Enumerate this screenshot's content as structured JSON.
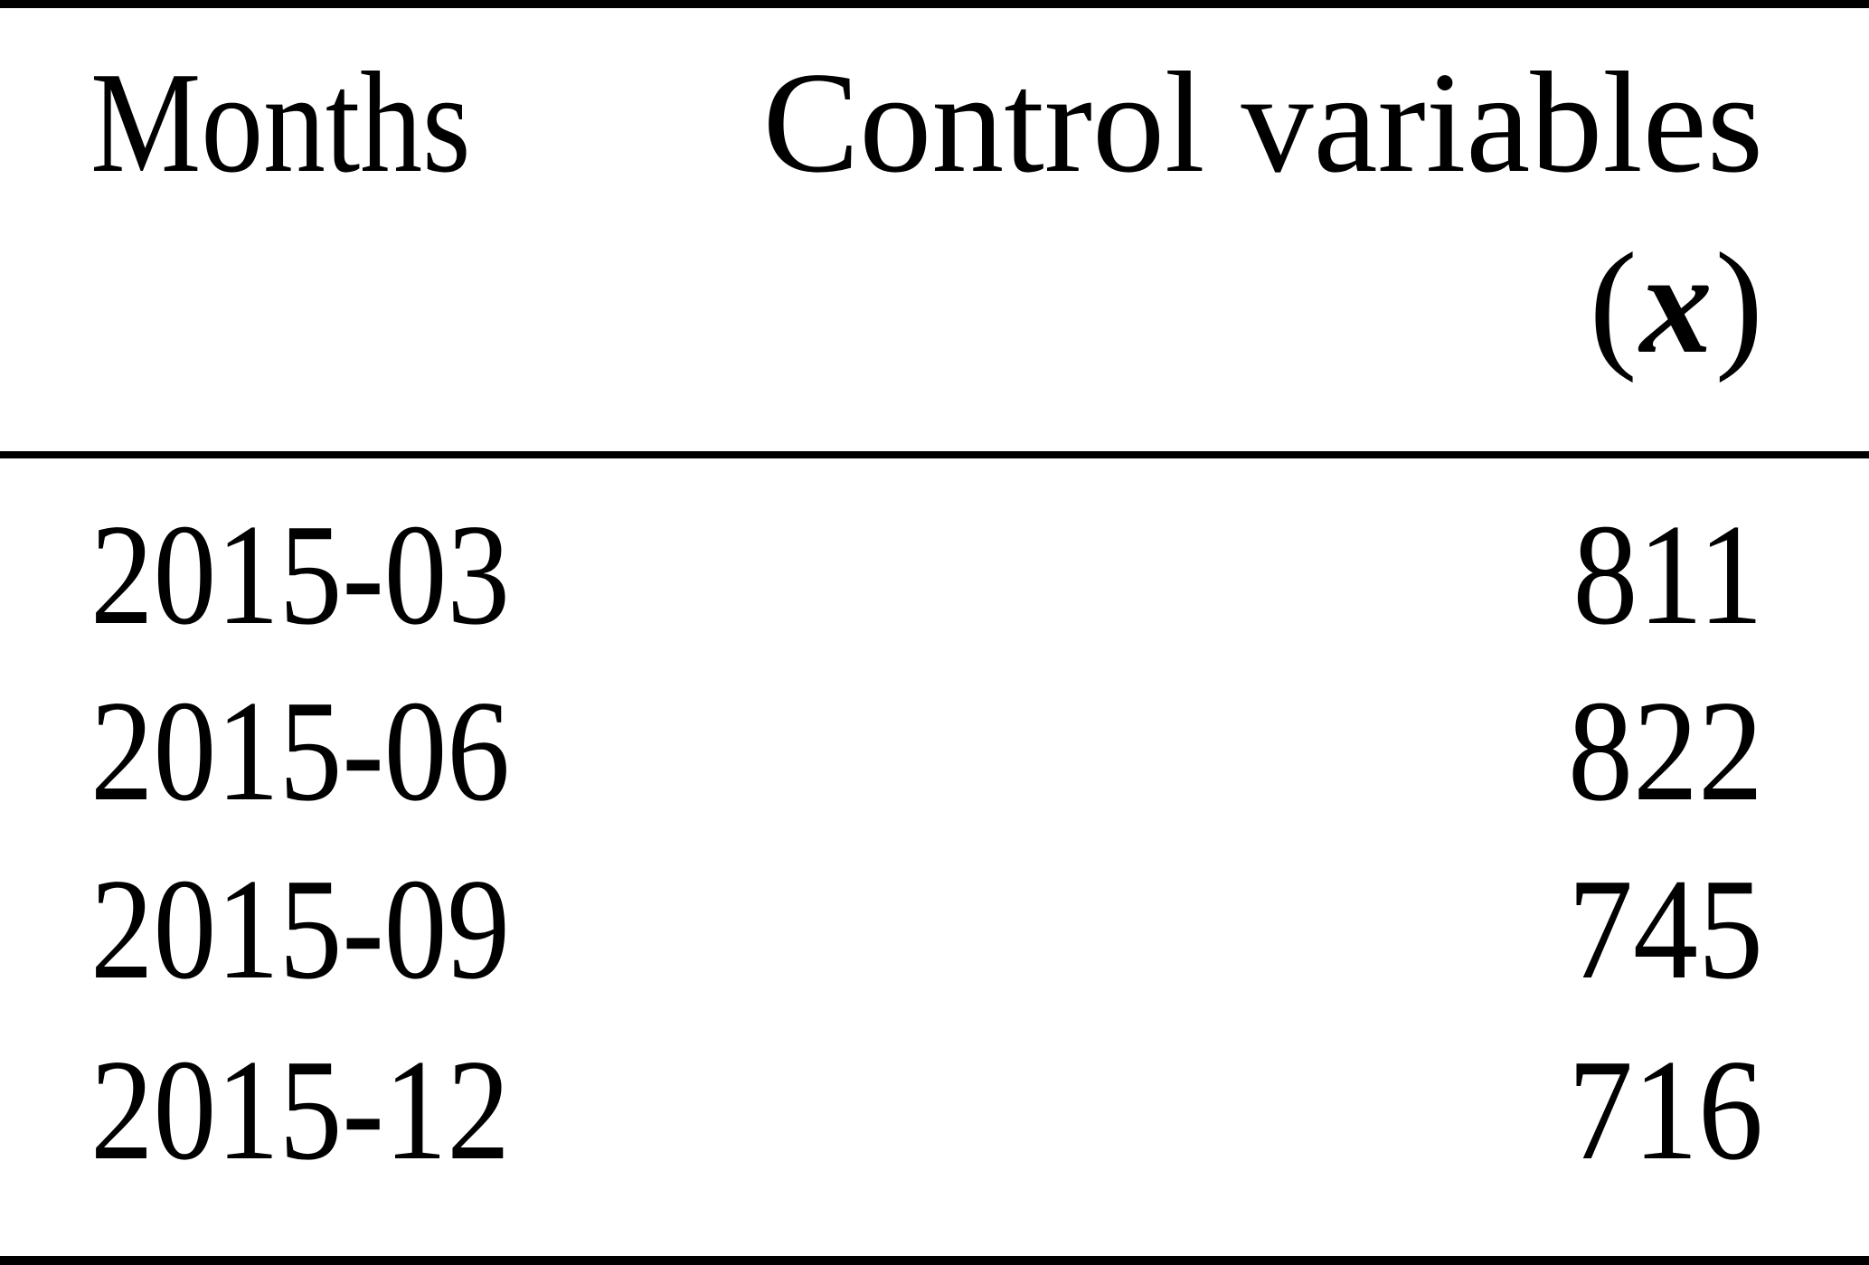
{
  "page": {
    "background_color": "#ffffff",
    "text_color": "#000000",
    "rule_color": "#000000"
  },
  "table": {
    "header": {
      "months": "Months",
      "control_line1": "Control variables",
      "control_paren_open": "(",
      "control_symbol": "x",
      "control_paren_close": ")"
    },
    "rows": [
      {
        "month": "2015-03",
        "value": "811"
      },
      {
        "month": "2015-06",
        "value": "822"
      },
      {
        "month": "2015-09",
        "value": "745"
      },
      {
        "month": "2015-12",
        "value": "716"
      }
    ]
  },
  "chart_data": {
    "type": "table",
    "columns": [
      "Months",
      "Control variables (x)"
    ],
    "rows": [
      [
        "2015-03",
        811
      ],
      [
        "2015-06",
        822
      ],
      [
        "2015-09",
        745
      ],
      [
        "2015-12",
        716
      ]
    ]
  }
}
